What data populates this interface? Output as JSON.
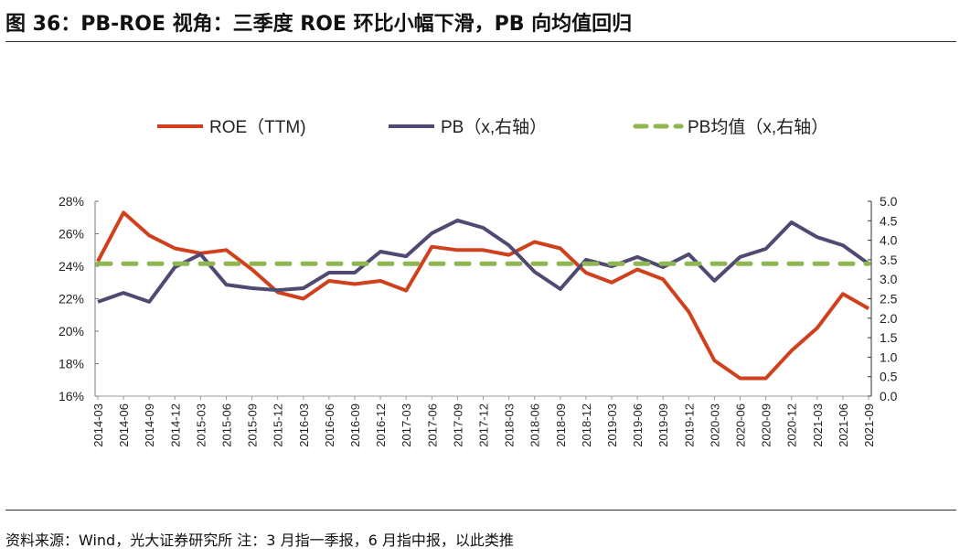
{
  "title": "图 36：PB-ROE 视角：三季度 ROE 环比小幅下滑，PB 向均值回归",
  "source": "资料来源：Wind，光大证券研究所  注：3 月指一季报，6 月指中报，以此类推",
  "chart_data": {
    "type": "line",
    "categories": [
      "2014-03",
      "2014-06",
      "2014-09",
      "2014-12",
      "2015-03",
      "2015-06",
      "2015-09",
      "2015-12",
      "2016-03",
      "2016-06",
      "2016-09",
      "2016-12",
      "2017-03",
      "2017-06",
      "2017-09",
      "2017-12",
      "2018-03",
      "2018-06",
      "2018-09",
      "2018-12",
      "2019-03",
      "2019-06",
      "2019-09",
      "2019-12",
      "2020-03",
      "2020-06",
      "2020-09",
      "2020-12",
      "2021-03",
      "2021-06",
      "2021-09"
    ],
    "series": [
      {
        "name": "ROE（TTM)",
        "axis": "left",
        "color": "#d0401c",
        "style": "solid",
        "values": [
          24.3,
          27.3,
          25.9,
          25.1,
          24.8,
          25.0,
          23.8,
          22.4,
          22.0,
          23.1,
          22.9,
          23.1,
          22.5,
          25.2,
          25.0,
          25.0,
          24.7,
          25.5,
          25.1,
          23.6,
          23.0,
          23.8,
          23.2,
          21.2,
          18.2,
          17.1,
          17.1,
          18.8,
          20.2,
          22.3,
          21.4
        ]
      },
      {
        "name": "PB（x,右轴）",
        "axis": "right",
        "color": "#4e4a72",
        "style": "solid",
        "values": [
          2.42,
          2.65,
          2.42,
          3.31,
          3.64,
          2.86,
          2.77,
          2.72,
          2.77,
          3.17,
          3.17,
          3.71,
          3.59,
          4.18,
          4.51,
          4.32,
          3.87,
          3.19,
          2.75,
          3.5,
          3.33,
          3.57,
          3.31,
          3.64,
          2.96,
          3.57,
          3.78,
          4.46,
          4.08,
          3.87,
          3.4
        ]
      },
      {
        "name": "PB均值（x,右轴）",
        "axis": "right",
        "color": "#8fb651",
        "style": "dashed",
        "values": [
          3.4,
          3.4,
          3.4,
          3.4,
          3.4,
          3.4,
          3.4,
          3.4,
          3.4,
          3.4,
          3.4,
          3.4,
          3.4,
          3.4,
          3.4,
          3.4,
          3.4,
          3.4,
          3.4,
          3.4,
          3.4,
          3.4,
          3.4,
          3.4,
          3.4,
          3.4,
          3.4,
          3.4,
          3.4,
          3.4,
          3.4
        ]
      }
    ],
    "left_axis": {
      "ylim": [
        16,
        28
      ],
      "ticks": [
        "16%",
        "18%",
        "20%",
        "22%",
        "24%",
        "26%",
        "28%"
      ]
    },
    "right_axis": {
      "ylim": [
        0,
        5
      ],
      "ticks": [
        "0.0",
        "0.5",
        "1.0",
        "1.5",
        "2.0",
        "2.5",
        "3.0",
        "3.5",
        "4.0",
        "4.5",
        "5.0"
      ]
    },
    "grid": false,
    "legend": "top"
  }
}
